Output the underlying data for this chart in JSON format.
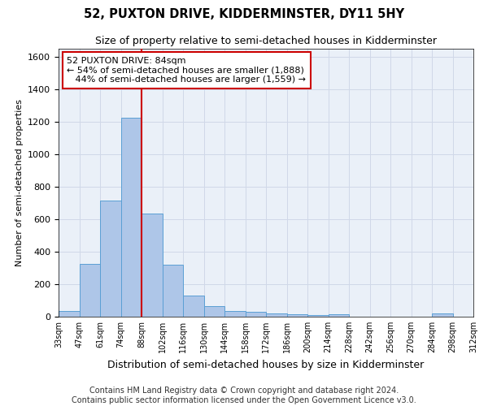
{
  "title": "52, PUXTON DRIVE, KIDDERMINSTER, DY11 5HY",
  "subtitle": "Size of property relative to semi-detached houses in Kidderminster",
  "xlabel": "Distribution of semi-detached houses by size in Kidderminster",
  "ylabel": "Number of semi-detached properties",
  "bar_values": [
    35,
    325,
    715,
    1225,
    635,
    320,
    130,
    65,
    35,
    30,
    20,
    15,
    10,
    15,
    0,
    0,
    0,
    0,
    20,
    0
  ],
  "bin_labels": [
    "33sqm",
    "47sqm",
    "61sqm",
    "74sqm",
    "88sqm",
    "102sqm",
    "116sqm",
    "130sqm",
    "144sqm",
    "158sqm",
    "172sqm",
    "186sqm",
    "200sqm",
    "214sqm",
    "228sqm",
    "242sqm",
    "256sqm",
    "270sqm",
    "284sqm",
    "298sqm",
    "312sqm"
  ],
  "bar_color": "#aec6e8",
  "bar_edge_color": "#5a9fd4",
  "marker_line_color": "#cc0000",
  "marker_bin_index": 4,
  "annotation_text": "52 PUXTON DRIVE: 84sqm\n← 54% of semi-detached houses are smaller (1,888)\n   44% of semi-detached houses are larger (1,559) →",
  "annotation_box_color": "white",
  "annotation_box_edge_color": "#cc0000",
  "ylim": [
    0,
    1650
  ],
  "yticks": [
    0,
    200,
    400,
    600,
    800,
    1000,
    1200,
    1400,
    1600
  ],
  "grid_color": "#d0d8e8",
  "background_color": "#eaf0f8",
  "footer_text": "Contains HM Land Registry data © Crown copyright and database right 2024.\nContains public sector information licensed under the Open Government Licence v3.0.",
  "title_fontsize": 10.5,
  "subtitle_fontsize": 9,
  "ylabel_fontsize": 8,
  "xlabel_fontsize": 9,
  "footer_fontsize": 7,
  "annotation_fontsize": 8
}
